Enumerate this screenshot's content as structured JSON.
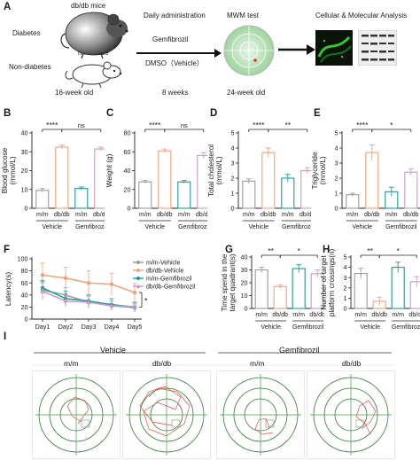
{
  "panel_letters": [
    "A",
    "B",
    "C",
    "D",
    "E",
    "F",
    "G",
    "H",
    "I"
  ],
  "schematic": {
    "dbdb_mice": "db/db mice",
    "diabetes": "Diabetes",
    "mm_mice": "m/m mice",
    "non_diabetes": "Non-diabetes",
    "age_start": "16-week old",
    "daily_admin": "Daily administration",
    "gemfibrozil": "Gemfibrozil",
    "dmso": "DMSO（Vehicle）",
    "duration": "8 weeks",
    "mwm": "MWM test",
    "age_end": "24-week old",
    "cell_mol": "Cellular & Molecular Analysis"
  },
  "common": {
    "cat_mm": "m/m",
    "cat_dbdb": "db/db",
    "grp_vehicle": "Vehicle",
    "grp_gem": "Gemfibrozil"
  },
  "chart_data": [
    {
      "panel": "B",
      "type": "bar",
      "ylabel": "Blood glucose\n(mmol/L)",
      "categories": [
        "m/m",
        "db/db",
        "m/m",
        "db/db"
      ],
      "groups": [
        "Vehicle",
        "Vehicle",
        "Gemfibrozil",
        "Gemfibrozil"
      ],
      "values": [
        9.5,
        32.5,
        10.5,
        31.5
      ],
      "errors": [
        1,
        1,
        0.8,
        1
      ],
      "ylim": [
        0,
        40
      ],
      "yticks": [
        "0",
        "10",
        "20",
        "30",
        "40"
      ],
      "colors": [
        "#9a9a9a",
        "#f2a07a",
        "#1f9a99",
        "#c89ac8"
      ],
      "sig": [
        {
          "from": 0,
          "to": 1,
          "text": "****"
        },
        {
          "from": 1,
          "to": 3,
          "text": "ns"
        }
      ]
    },
    {
      "panel": "C",
      "type": "bar",
      "ylabel": "Weight (g)",
      "categories": [
        "m/m",
        "db/db",
        "m/m",
        "db/db"
      ],
      "groups": [
        "Vehicle",
        "Vehicle",
        "Gemfibrozil",
        "Gemfibrozil"
      ],
      "values": [
        28,
        61,
        28,
        56
      ],
      "errors": [
        1.5,
        2,
        1.5,
        3
      ],
      "ylim": [
        0,
        80
      ],
      "yticks": [
        "0",
        "20",
        "40",
        "60",
        "80"
      ],
      "colors": [
        "#9a9a9a",
        "#f2a07a",
        "#1f9a99",
        "#c89ac8"
      ],
      "sig": [
        {
          "from": 0,
          "to": 1,
          "text": "****"
        },
        {
          "from": 1,
          "to": 3,
          "text": "ns"
        }
      ]
    },
    {
      "panel": "D",
      "type": "bar",
      "ylabel": "Total cholesterol\n(mmol/L)",
      "categories": [
        "m/m",
        "db/db",
        "m/m",
        "db/db"
      ],
      "groups": [
        "Vehicle",
        "Vehicle",
        "Gemfibrozil",
        "Gemfibrozil"
      ],
      "values": [
        1.8,
        3.7,
        2.0,
        2.5
      ],
      "errors": [
        0.15,
        0.3,
        0.25,
        0.2
      ],
      "ylim": [
        0,
        5
      ],
      "yticks": [
        "0",
        "1",
        "2",
        "3",
        "4",
        "5"
      ],
      "colors": [
        "#9a9a9a",
        "#f2a07a",
        "#1f9a99",
        "#c89ac8"
      ],
      "sig": [
        {
          "from": 0,
          "to": 1,
          "text": "****"
        },
        {
          "from": 1,
          "to": 3,
          "text": "**"
        }
      ]
    },
    {
      "panel": "E",
      "type": "bar",
      "ylabel": "Triglyceride\n(mmol/L)",
      "categories": [
        "m/m",
        "db/db",
        "m/m",
        "db/db"
      ],
      "groups": [
        "Vehicle",
        "Vehicle",
        "Gemfibrozil",
        "Gemfibrozil"
      ],
      "values": [
        0.9,
        3.7,
        1.1,
        2.4
      ],
      "errors": [
        0.1,
        0.5,
        0.3,
        0.2
      ],
      "ylim": [
        0,
        5
      ],
      "yticks": [
        "0",
        "1",
        "2",
        "3",
        "4",
        "5"
      ],
      "colors": [
        "#9a9a9a",
        "#f2a07a",
        "#1f9a99",
        "#c89ac8"
      ],
      "sig": [
        {
          "from": 0,
          "to": 1,
          "text": "****"
        },
        {
          "from": 1,
          "to": 3,
          "text": "*"
        }
      ]
    },
    {
      "panel": "F",
      "type": "line",
      "ylabel": "Latency(s)",
      "x": [
        "Day1",
        "Day2",
        "Day3",
        "Day4",
        "Day5"
      ],
      "ylim": [
        0,
        100
      ],
      "yticks": [
        "0",
        "20",
        "40",
        "60",
        "80",
        "100"
      ],
      "series": [
        {
          "name": "m/m-Vehicle",
          "color": "#9a9a9a",
          "marker": "circle",
          "values": [
            48,
            40,
            28,
            22,
            19
          ],
          "errors": [
            14,
            12,
            10,
            8,
            6
          ]
        },
        {
          "name": "db/db-Vehicle",
          "color": "#f2a07a",
          "marker": "circle",
          "values": [
            73,
            68,
            60,
            58,
            44
          ],
          "errors": [
            20,
            18,
            20,
            18,
            15
          ]
        },
        {
          "name": "m/m-Gemfibrozil",
          "color": "#1f9a99",
          "marker": "circle",
          "values": [
            52,
            34,
            30,
            24,
            20
          ],
          "errors": [
            12,
            12,
            10,
            10,
            8
          ]
        },
        {
          "name": "db/db-Gemfibrozil",
          "color": "#c89ac8",
          "marker": "triangle",
          "values": [
            46,
            30,
            28,
            22,
            21
          ],
          "errors": [
            14,
            10,
            10,
            8,
            6
          ]
        }
      ],
      "sig_text": "*"
    },
    {
      "panel": "G",
      "type": "bar",
      "ylabel": "Time spend in the\ntarget quadrant(s)",
      "categories": [
        "m/m",
        "db/db",
        "m/m",
        "db/db"
      ],
      "groups": [
        "Vehicle",
        "Vehicle",
        "Gemfibrozil",
        "Gemfibrozil"
      ],
      "values": [
        30,
        17,
        31,
        27
      ],
      "errors": [
        2,
        1.5,
        3,
        3
      ],
      "ylim": [
        0,
        40
      ],
      "yticks": [
        "0",
        "10",
        "20",
        "30",
        "40"
      ],
      "colors": [
        "#9a9a9a",
        "#f2a07a",
        "#1f9a99",
        "#c89ac8"
      ],
      "sig": [
        {
          "from": 0,
          "to": 1,
          "text": "**"
        },
        {
          "from": 1,
          "to": 3,
          "text": "*"
        }
      ]
    },
    {
      "panel": "H",
      "type": "bar",
      "ylabel": "Number of target\nplatform crossings(n)",
      "categories": [
        "m/m",
        "db/db",
        "m/m",
        "db/db"
      ],
      "groups": [
        "Vehicle",
        "Vehicle",
        "Gemfibrozil",
        "Gemfibrozil"
      ],
      "values": [
        3.4,
        0.7,
        4.0,
        2.6
      ],
      "errors": [
        0.5,
        0.4,
        0.5,
        0.5
      ],
      "ylim": [
        0,
        5
      ],
      "yticks": [
        "0",
        "1",
        "2",
        "3",
        "4",
        "5"
      ],
      "colors": [
        "#9a9a9a",
        "#f2a07a",
        "#1f9a99",
        "#c89ac8"
      ],
      "sig": [
        {
          "from": 0,
          "to": 1,
          "text": "**"
        },
        {
          "from": 1,
          "to": 3,
          "text": "*"
        }
      ]
    }
  ],
  "tracks": {
    "vehicle": "Vehicle",
    "gemfibrozil": "Gemfibrozil",
    "labels": [
      "m/m",
      "db/db",
      "m/m",
      "db/db"
    ]
  }
}
